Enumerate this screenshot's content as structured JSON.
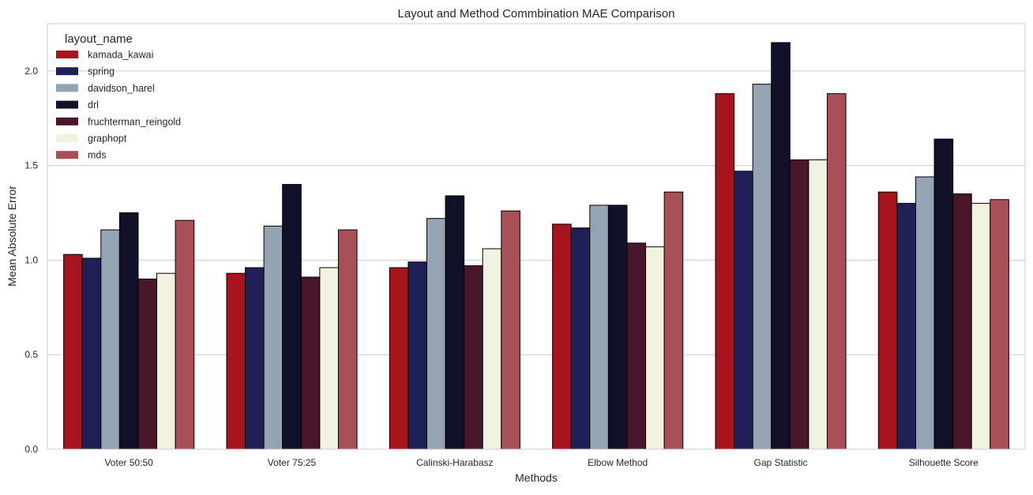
{
  "chart_data": {
    "type": "bar",
    "title": "Layout and Method Commbination MAE Comparison",
    "xlabel": "Methods",
    "ylabel": "Mean Absolute Error",
    "ylim": [
      0,
      2.25
    ],
    "yticks": [
      "0.0",
      "0.5",
      "1.0",
      "1.5",
      "2.0"
    ],
    "grid": "horizontal",
    "legend_title": "layout_name",
    "legend_position": "top-left",
    "categories": [
      "Voter 50:50",
      "Voter 75:25",
      "Calinski-Harabasz",
      "Elbow Method",
      "Gap Statistic",
      "Silhouette Score"
    ],
    "series": [
      {
        "name": "kamada_kawai",
        "color": "#a8141e",
        "values": [
          1.03,
          0.93,
          0.96,
          1.19,
          1.88,
          1.36
        ]
      },
      {
        "name": "spring",
        "color": "#1f2156",
        "values": [
          1.01,
          0.96,
          0.99,
          1.17,
          1.47,
          1.3
        ]
      },
      {
        "name": "davidson_harel",
        "color": "#95a4b3",
        "values": [
          1.16,
          1.18,
          1.22,
          1.29,
          1.93,
          1.44
        ]
      },
      {
        "name": "drl",
        "color": "#111229",
        "values": [
          1.25,
          1.4,
          1.34,
          1.29,
          2.15,
          1.64
        ]
      },
      {
        "name": "fruchterman_reingold",
        "color": "#4a162b",
        "values": [
          0.9,
          0.91,
          0.97,
          1.09,
          1.53,
          1.35
        ]
      },
      {
        "name": "graphopt",
        "color": "#f2f2e0",
        "values": [
          0.93,
          0.96,
          1.06,
          1.07,
          1.53,
          1.3
        ]
      },
      {
        "name": "mds",
        "color": "#a84f58",
        "values": [
          1.21,
          1.16,
          1.26,
          1.36,
          1.88,
          1.32
        ]
      }
    ]
  }
}
